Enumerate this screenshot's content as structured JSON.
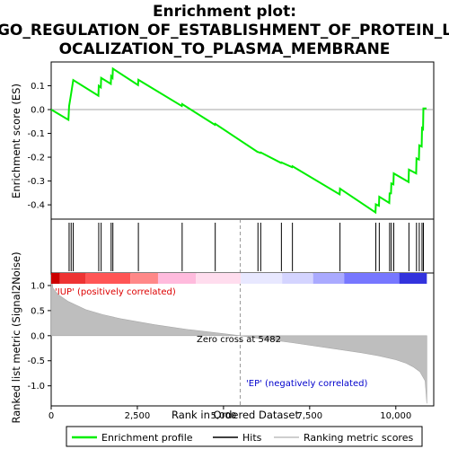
{
  "chart_data": {
    "type": "line",
    "title": "Enrichment plot:",
    "title_line2": "GO_REGULATION_OF_ESTABLISHMENT_OF_PROTEIN_L",
    "title_line3": "OCALIZATION_TO_PLASMA_MEMBRANE",
    "xlabel": "Rank in Ordered Dataset",
    "ylabel_top": "Enrichment score (ES)",
    "ylabel_bottom": "Ranked list metric (Signal2Noise)",
    "xlim": [
      0,
      11100
    ],
    "es_ylim": [
      -0.46,
      0.2
    ],
    "metric_ylim": [
      -1.4,
      1.25
    ],
    "x_ticks": [
      0,
      2500,
      5000,
      7500,
      10000
    ],
    "x_tick_labels": [
      "0",
      "2,500",
      "5,000",
      "7,500",
      "10,000"
    ],
    "es_ticks": [
      0.1,
      0.0,
      -0.1,
      -0.2,
      -0.3,
      -0.4
    ],
    "es_tick_labels": [
      "0.1",
      "0.0",
      "-0.1",
      "-0.2",
      "-0.3",
      "-0.4"
    ],
    "metric_ticks": [
      1.0,
      0.5,
      0.0,
      -0.5,
      -1.0
    ],
    "metric_tick_labels": [
      "1.0",
      "0.5",
      "0.0",
      "-0.5",
      "-1.0"
    ],
    "annotations": {
      "pos_label": "'IUP' (positively correlated)",
      "neg_label": "'EP' (negatively correlated)",
      "zero_cross": "Zero cross at 5482",
      "zero_cross_rank": 5482
    },
    "legend": {
      "placement": "bottom",
      "items": [
        "Enrichment profile",
        "Hits",
        "Ranking metric scores"
      ]
    },
    "colors": {
      "enrichment_profile": "#00ee00",
      "hits": "#000000",
      "ranking_metric": "#bebebe",
      "zero_line": "#808080"
    },
    "hits": [
      520,
      580,
      640,
      1380,
      1450,
      1740,
      1790,
      2530,
      3800,
      4760,
      6000,
      6080,
      6680,
      7000,
      8380,
      9420,
      9520,
      9820,
      9870,
      9940,
      10380,
      10600,
      10680,
      10760,
      10800
    ],
    "enrichment_profile": {
      "x": [
        0,
        500,
        520,
        580,
        640,
        1370,
        1380,
        1440,
        1450,
        1730,
        1740,
        1780,
        1790,
        2520,
        2530,
        3790,
        3800,
        4750,
        4760,
        5990,
        6000,
        6070,
        6080,
        6670,
        6680,
        6990,
        7000,
        8370,
        8380,
        9410,
        9420,
        9510,
        9520,
        9810,
        9820,
        9860,
        9870,
        9930,
        9940,
        10370,
        10380,
        10590,
        10600,
        10670,
        10680,
        10750,
        10760,
        10790,
        10800,
        10890
      ],
      "y": [
        0.0,
        -0.043,
        0.015,
        0.068,
        0.124,
        0.058,
        0.1,
        0.093,
        0.133,
        0.108,
        0.14,
        0.133,
        0.172,
        0.103,
        0.125,
        0.015,
        0.023,
        -0.064,
        -0.06,
        -0.178,
        -0.178,
        -0.182,
        -0.18,
        -0.224,
        -0.222,
        -0.242,
        -0.238,
        -0.356,
        -0.332,
        -0.432,
        -0.398,
        -0.404,
        -0.366,
        -0.392,
        -0.352,
        -0.352,
        -0.31,
        -0.314,
        -0.268,
        -0.304,
        -0.252,
        -0.268,
        -0.205,
        -0.21,
        -0.15,
        -0.155,
        -0.078,
        -0.082,
        0.005,
        0.005
      ]
    },
    "ranking_metric": {
      "x": [
        0,
        50,
        200,
        500,
        1000,
        1500,
        2000,
        3000,
        4000,
        5000,
        5482,
        6000,
        7000,
        8000,
        9000,
        9500,
        10000,
        10300,
        10500,
        10700,
        10850,
        10900
      ],
      "y": [
        1.22,
        0.95,
        0.82,
        0.68,
        0.52,
        0.42,
        0.34,
        0.22,
        0.12,
        0.04,
        0.0,
        -0.05,
        -0.14,
        -0.24,
        -0.34,
        -0.4,
        -0.48,
        -0.55,
        -0.62,
        -0.72,
        -0.9,
        -1.35
      ]
    },
    "color_bar": {
      "colors": [
        "#cc0000",
        "#ee3333",
        "#ff5555",
        "#ff8888",
        "#ffbbdd",
        "#ffddee",
        "#e8e8ff",
        "#d4d4ff",
        "#aaaaff",
        "#7777ff",
        "#3333dd",
        "#0000bb"
      ],
      "breaks": [
        0,
        250,
        1000,
        2300,
        3100,
        4200,
        5500,
        6700,
        7600,
        8500,
        10100,
        10900
      ]
    }
  }
}
